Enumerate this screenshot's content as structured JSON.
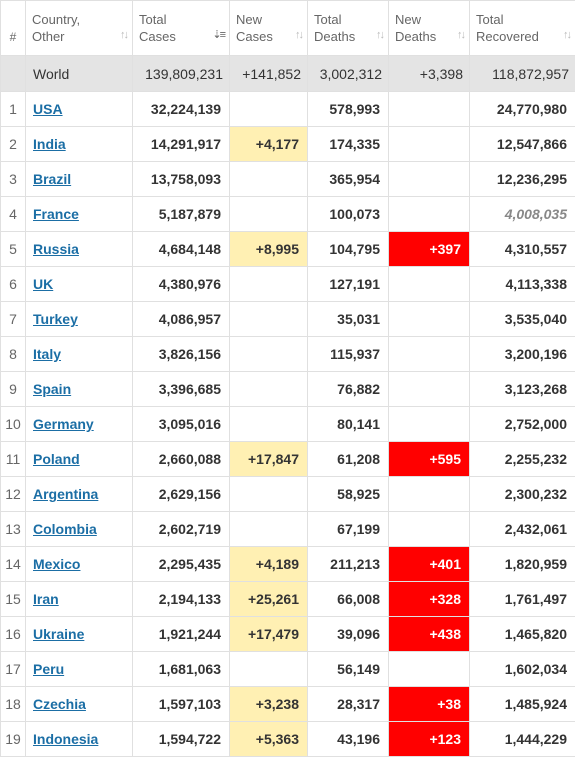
{
  "headers": {
    "rank": "#",
    "country": [
      "Country,",
      "Other"
    ],
    "total_cases": [
      "Total",
      "Cases"
    ],
    "new_cases": [
      "New",
      "Cases"
    ],
    "total_deaths": [
      "Total",
      "Deaths"
    ],
    "new_deaths": [
      "New",
      "Deaths"
    ],
    "total_recovered": [
      "Total",
      "Recovered"
    ]
  },
  "sort_icon": "sort-arrows-icon",
  "world": {
    "country": "World",
    "total_cases": "139,809,231",
    "new_cases": "+141,852",
    "total_deaths": "3,002,312",
    "new_deaths": "+3,398",
    "total_recovered": "118,872,957"
  },
  "rows": [
    {
      "rank": "1",
      "country": "USA",
      "total_cases": "32,224,139",
      "new_cases": "",
      "total_deaths": "578,993",
      "new_deaths": "",
      "total_recovered": "24,770,980"
    },
    {
      "rank": "2",
      "country": "India",
      "total_cases": "14,291,917",
      "new_cases": "+4,177",
      "total_deaths": "174,335",
      "new_deaths": "",
      "total_recovered": "12,547,866"
    },
    {
      "rank": "3",
      "country": "Brazil",
      "total_cases": "13,758,093",
      "new_cases": "",
      "total_deaths": "365,954",
      "new_deaths": "",
      "total_recovered": "12,236,295"
    },
    {
      "rank": "4",
      "country": "France",
      "total_cases": "5,187,879",
      "new_cases": "",
      "total_deaths": "100,073",
      "new_deaths": "",
      "total_recovered": "4,008,035",
      "recovered_estimated": true
    },
    {
      "rank": "5",
      "country": "Russia",
      "total_cases": "4,684,148",
      "new_cases": "+8,995",
      "total_deaths": "104,795",
      "new_deaths": "+397",
      "total_recovered": "4,310,557"
    },
    {
      "rank": "6",
      "country": "UK",
      "total_cases": "4,380,976",
      "new_cases": "",
      "total_deaths": "127,191",
      "new_deaths": "",
      "total_recovered": "4,113,338"
    },
    {
      "rank": "7",
      "country": "Turkey",
      "total_cases": "4,086,957",
      "new_cases": "",
      "total_deaths": "35,031",
      "new_deaths": "",
      "total_recovered": "3,535,040"
    },
    {
      "rank": "8",
      "country": "Italy",
      "total_cases": "3,826,156",
      "new_cases": "",
      "total_deaths": "115,937",
      "new_deaths": "",
      "total_recovered": "3,200,196"
    },
    {
      "rank": "9",
      "country": "Spain",
      "total_cases": "3,396,685",
      "new_cases": "",
      "total_deaths": "76,882",
      "new_deaths": "",
      "total_recovered": "3,123,268"
    },
    {
      "rank": "10",
      "country": "Germany",
      "total_cases": "3,095,016",
      "new_cases": "",
      "total_deaths": "80,141",
      "new_deaths": "",
      "total_recovered": "2,752,000"
    },
    {
      "rank": "11",
      "country": "Poland",
      "total_cases": "2,660,088",
      "new_cases": "+17,847",
      "total_deaths": "61,208",
      "new_deaths": "+595",
      "total_recovered": "2,255,232"
    },
    {
      "rank": "12",
      "country": "Argentina",
      "total_cases": "2,629,156",
      "new_cases": "",
      "total_deaths": "58,925",
      "new_deaths": "",
      "total_recovered": "2,300,232"
    },
    {
      "rank": "13",
      "country": "Colombia",
      "total_cases": "2,602,719",
      "new_cases": "",
      "total_deaths": "67,199",
      "new_deaths": "",
      "total_recovered": "2,432,061"
    },
    {
      "rank": "14",
      "country": "Mexico",
      "total_cases": "2,295,435",
      "new_cases": "+4,189",
      "total_deaths": "211,213",
      "new_deaths": "+401",
      "total_recovered": "1,820,959"
    },
    {
      "rank": "15",
      "country": "Iran",
      "total_cases": "2,194,133",
      "new_cases": "+25,261",
      "total_deaths": "66,008",
      "new_deaths": "+328",
      "total_recovered": "1,761,497"
    },
    {
      "rank": "16",
      "country": "Ukraine",
      "total_cases": "1,921,244",
      "new_cases": "+17,479",
      "total_deaths": "39,096",
      "new_deaths": "+438",
      "total_recovered": "1,465,820"
    },
    {
      "rank": "17",
      "country": "Peru",
      "total_cases": "1,681,063",
      "new_cases": "",
      "total_deaths": "56,149",
      "new_deaths": "",
      "total_recovered": "1,602,034"
    },
    {
      "rank": "18",
      "country": "Czechia",
      "total_cases": "1,597,103",
      "new_cases": "+3,238",
      "total_deaths": "28,317",
      "new_deaths": "+38",
      "total_recovered": "1,485,924"
    },
    {
      "rank": "19",
      "country": "Indonesia",
      "total_cases": "1,594,722",
      "new_cases": "+5,363",
      "total_deaths": "43,196",
      "new_deaths": "+123",
      "total_recovered": "1,444,229"
    }
  ],
  "colors": {
    "new_cases_highlight": "#fff0b3",
    "new_deaths_highlight": "#ff0000",
    "link": "#1b6ea5",
    "world_row_bg": "#e4e4e4"
  }
}
